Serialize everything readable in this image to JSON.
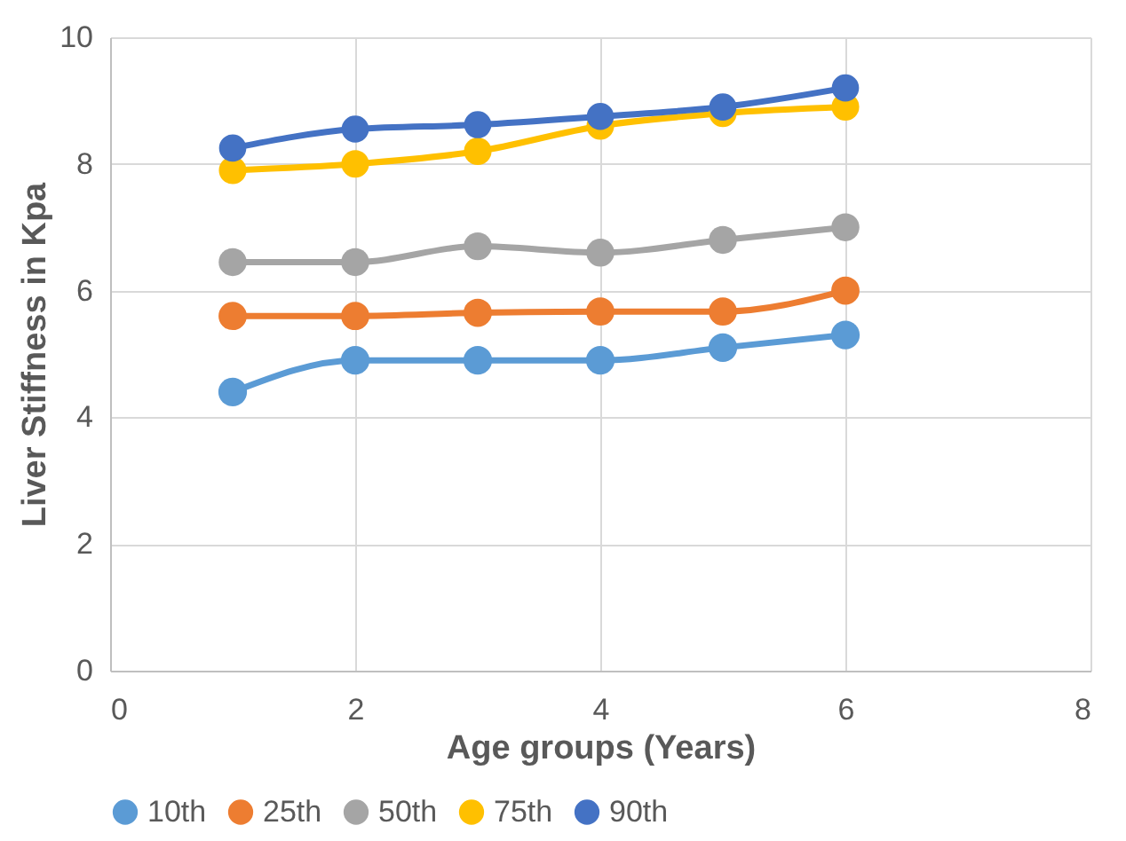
{
  "chart_data": {
    "type": "line",
    "xlabel": "Age groups (Years)",
    "ylabel": "Liver Stiffness in Kpa",
    "x": [
      1,
      2,
      3,
      4,
      5,
      6
    ],
    "series": [
      {
        "name": "10th",
        "color": "#5b9bd5",
        "values": [
          4.4,
          4.9,
          4.9,
          4.9,
          5.1,
          5.3
        ]
      },
      {
        "name": "25th",
        "color": "#ed7d31",
        "values": [
          5.6,
          5.6,
          5.65,
          5.67,
          5.67,
          6.0
        ]
      },
      {
        "name": "50th",
        "color": "#a5a5a5",
        "values": [
          6.45,
          6.45,
          6.7,
          6.6,
          6.8,
          7.0
        ]
      },
      {
        "name": "75th",
        "color": "#ffc000",
        "values": [
          7.9,
          8.0,
          8.2,
          8.6,
          8.8,
          8.9
        ]
      },
      {
        "name": "90th",
        "color": "#4472c4",
        "values": [
          8.25,
          8.55,
          8.62,
          8.75,
          8.9,
          9.2
        ]
      }
    ],
    "xlim": [
      0,
      8
    ],
    "xticks": [
      0,
      2,
      4,
      6,
      8
    ],
    "ylim": [
      0,
      10
    ],
    "yticks": [
      0,
      2,
      4,
      6,
      8,
      10
    ],
    "grid": true,
    "legend": "bottom",
    "marker": "circle",
    "line_style": "solid"
  }
}
